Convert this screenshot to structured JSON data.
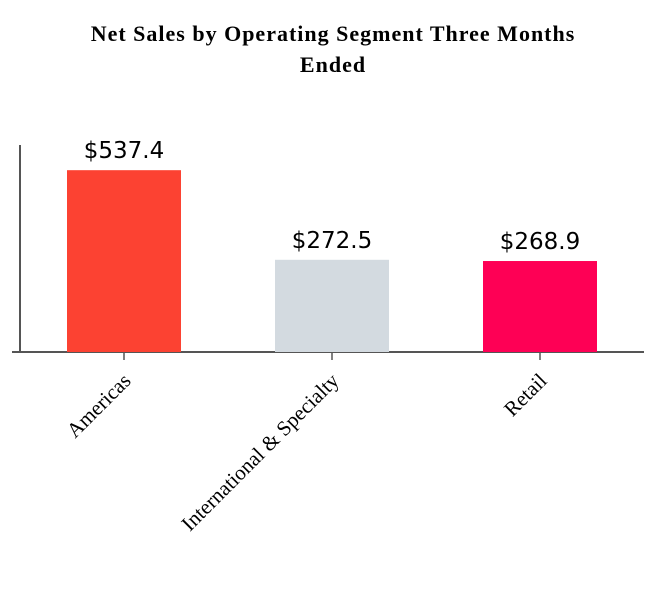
{
  "chart_data": {
    "type": "bar",
    "title": "Net Sales by Operating Segment Three Months Ended",
    "categories": [
      "Americas",
      "International & Specialty",
      "Retail"
    ],
    "values": [
      537.4,
      272.5,
      268.9
    ],
    "value_labels": [
      "$537.4",
      "$272.5",
      "$268.9"
    ],
    "colors": [
      "#fc4232",
      "#d3dae0",
      "#fe0055"
    ],
    "ylim": [
      0,
      600
    ]
  }
}
